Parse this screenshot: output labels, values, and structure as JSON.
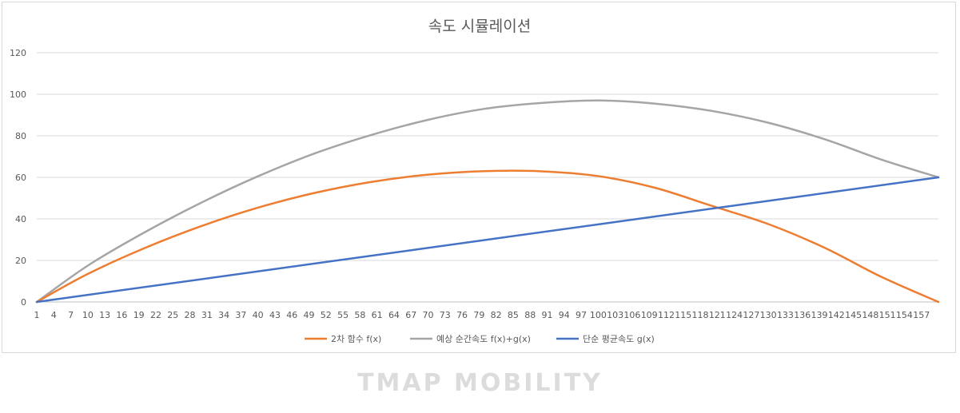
{
  "chart_data": {
    "type": "line",
    "title": "속도 시뮬레이션",
    "xlabel": "",
    "ylabel": "",
    "ylim": [
      0,
      120
    ],
    "yticks": [
      0,
      20,
      40,
      60,
      80,
      100,
      120
    ],
    "x_domain": [
      1,
      160
    ],
    "x_ticks": [
      1,
      4,
      7,
      10,
      13,
      16,
      19,
      22,
      25,
      28,
      31,
      34,
      37,
      40,
      43,
      46,
      49,
      52,
      55,
      58,
      61,
      64,
      67,
      70,
      73,
      76,
      79,
      82,
      85,
      88,
      91,
      94,
      97,
      100,
      103,
      106,
      109,
      112,
      115,
      118,
      121,
      124,
      127,
      130,
      133,
      136,
      139,
      142,
      145,
      148,
      151,
      154,
      157
    ],
    "grid": true,
    "legend_position": "bottom",
    "series": [
      {
        "name": "2차 함수 f(x)",
        "color": "#ed7d31",
        "points": [
          [
            1,
            0
          ],
          [
            10,
            13.5
          ],
          [
            20,
            25.9
          ],
          [
            30,
            36.5
          ],
          [
            40,
            45.4
          ],
          [
            50,
            52.5
          ],
          [
            60,
            57.8
          ],
          [
            70,
            61.3
          ],
          [
            80,
            63
          ],
          [
            90,
            62.9
          ],
          [
            100,
            60.6
          ],
          [
            110,
            55
          ],
          [
            120,
            46.3
          ],
          [
            130,
            37.5
          ],
          [
            140,
            26
          ],
          [
            150,
            12
          ],
          [
            160,
            0
          ]
        ]
      },
      {
        "name": "예상 순간속도 f(x)+g(x)",
        "color": "#a5a5a5",
        "points": [
          [
            1,
            0
          ],
          [
            10,
            17.5
          ],
          [
            20,
            33.5
          ],
          [
            30,
            47.8
          ],
          [
            40,
            60.5
          ],
          [
            50,
            71.5
          ],
          [
            60,
            80.4
          ],
          [
            70,
            87.7
          ],
          [
            80,
            93
          ],
          [
            90,
            95.8
          ],
          [
            100,
            97
          ],
          [
            110,
            95.5
          ],
          [
            120,
            92
          ],
          [
            130,
            86.3
          ],
          [
            140,
            78.3
          ],
          [
            150,
            68.5
          ],
          [
            160,
            60
          ]
        ]
      },
      {
        "name": "단순 평균속도 g(x)",
        "color": "#4472c4",
        "points": [
          [
            1,
            0
          ],
          [
            160,
            60
          ]
        ]
      }
    ]
  },
  "watermark": "TMAP MOBILITY"
}
